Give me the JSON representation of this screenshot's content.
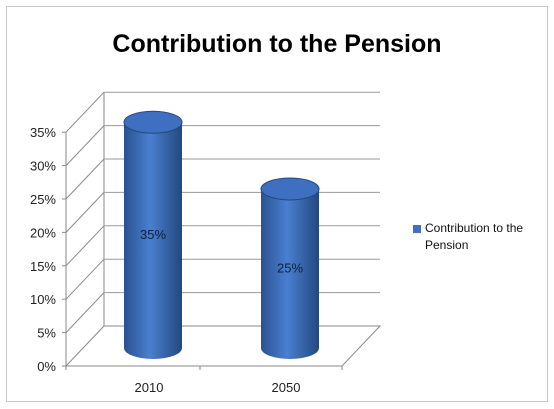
{
  "chart_data": {
    "type": "bar",
    "title": "Contribution to the Pension",
    "categories": [
      "2010",
      "2050"
    ],
    "series": [
      {
        "name": "Contribution to the Pension",
        "values": [
          35,
          25
        ],
        "data_labels": [
          "35%",
          "25%"
        ]
      }
    ],
    "y_ticks": [
      "0%",
      "5%",
      "10%",
      "15%",
      "20%",
      "25%",
      "30%",
      "35%"
    ],
    "ylim": [
      0,
      35
    ],
    "grid": true,
    "legend": "right",
    "bar_color": "#3f6fc0",
    "bar_dark": "#23487f",
    "bar_light": "#6f98dc"
  }
}
